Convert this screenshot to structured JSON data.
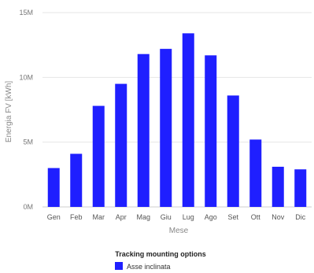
{
  "chart_data": {
    "type": "bar",
    "categories": [
      "Gen",
      "Feb",
      "Mar",
      "Apr",
      "Mag",
      "Giu",
      "Lug",
      "Ago",
      "Set",
      "Ott",
      "Nov",
      "Dic"
    ],
    "series": [
      {
        "name": "Asse inclinata",
        "values": [
          3.0,
          4.1,
          7.8,
          9.5,
          11.8,
          12.2,
          13.4,
          11.7,
          8.6,
          5.2,
          3.1,
          2.9
        ],
        "color": "#1f1fff"
      }
    ],
    "y_ticks": [
      "0M",
      "5M",
      "10M",
      "15M"
    ],
    "y_tick_values": [
      0,
      5,
      10,
      15
    ],
    "ylim": [
      0,
      15
    ],
    "xlabel": "Mese",
    "ylabel": "Energia FV [kWh]",
    "grid": true,
    "legend": {
      "title": "Tracking mounting options",
      "placement": "bottom-center"
    }
  }
}
